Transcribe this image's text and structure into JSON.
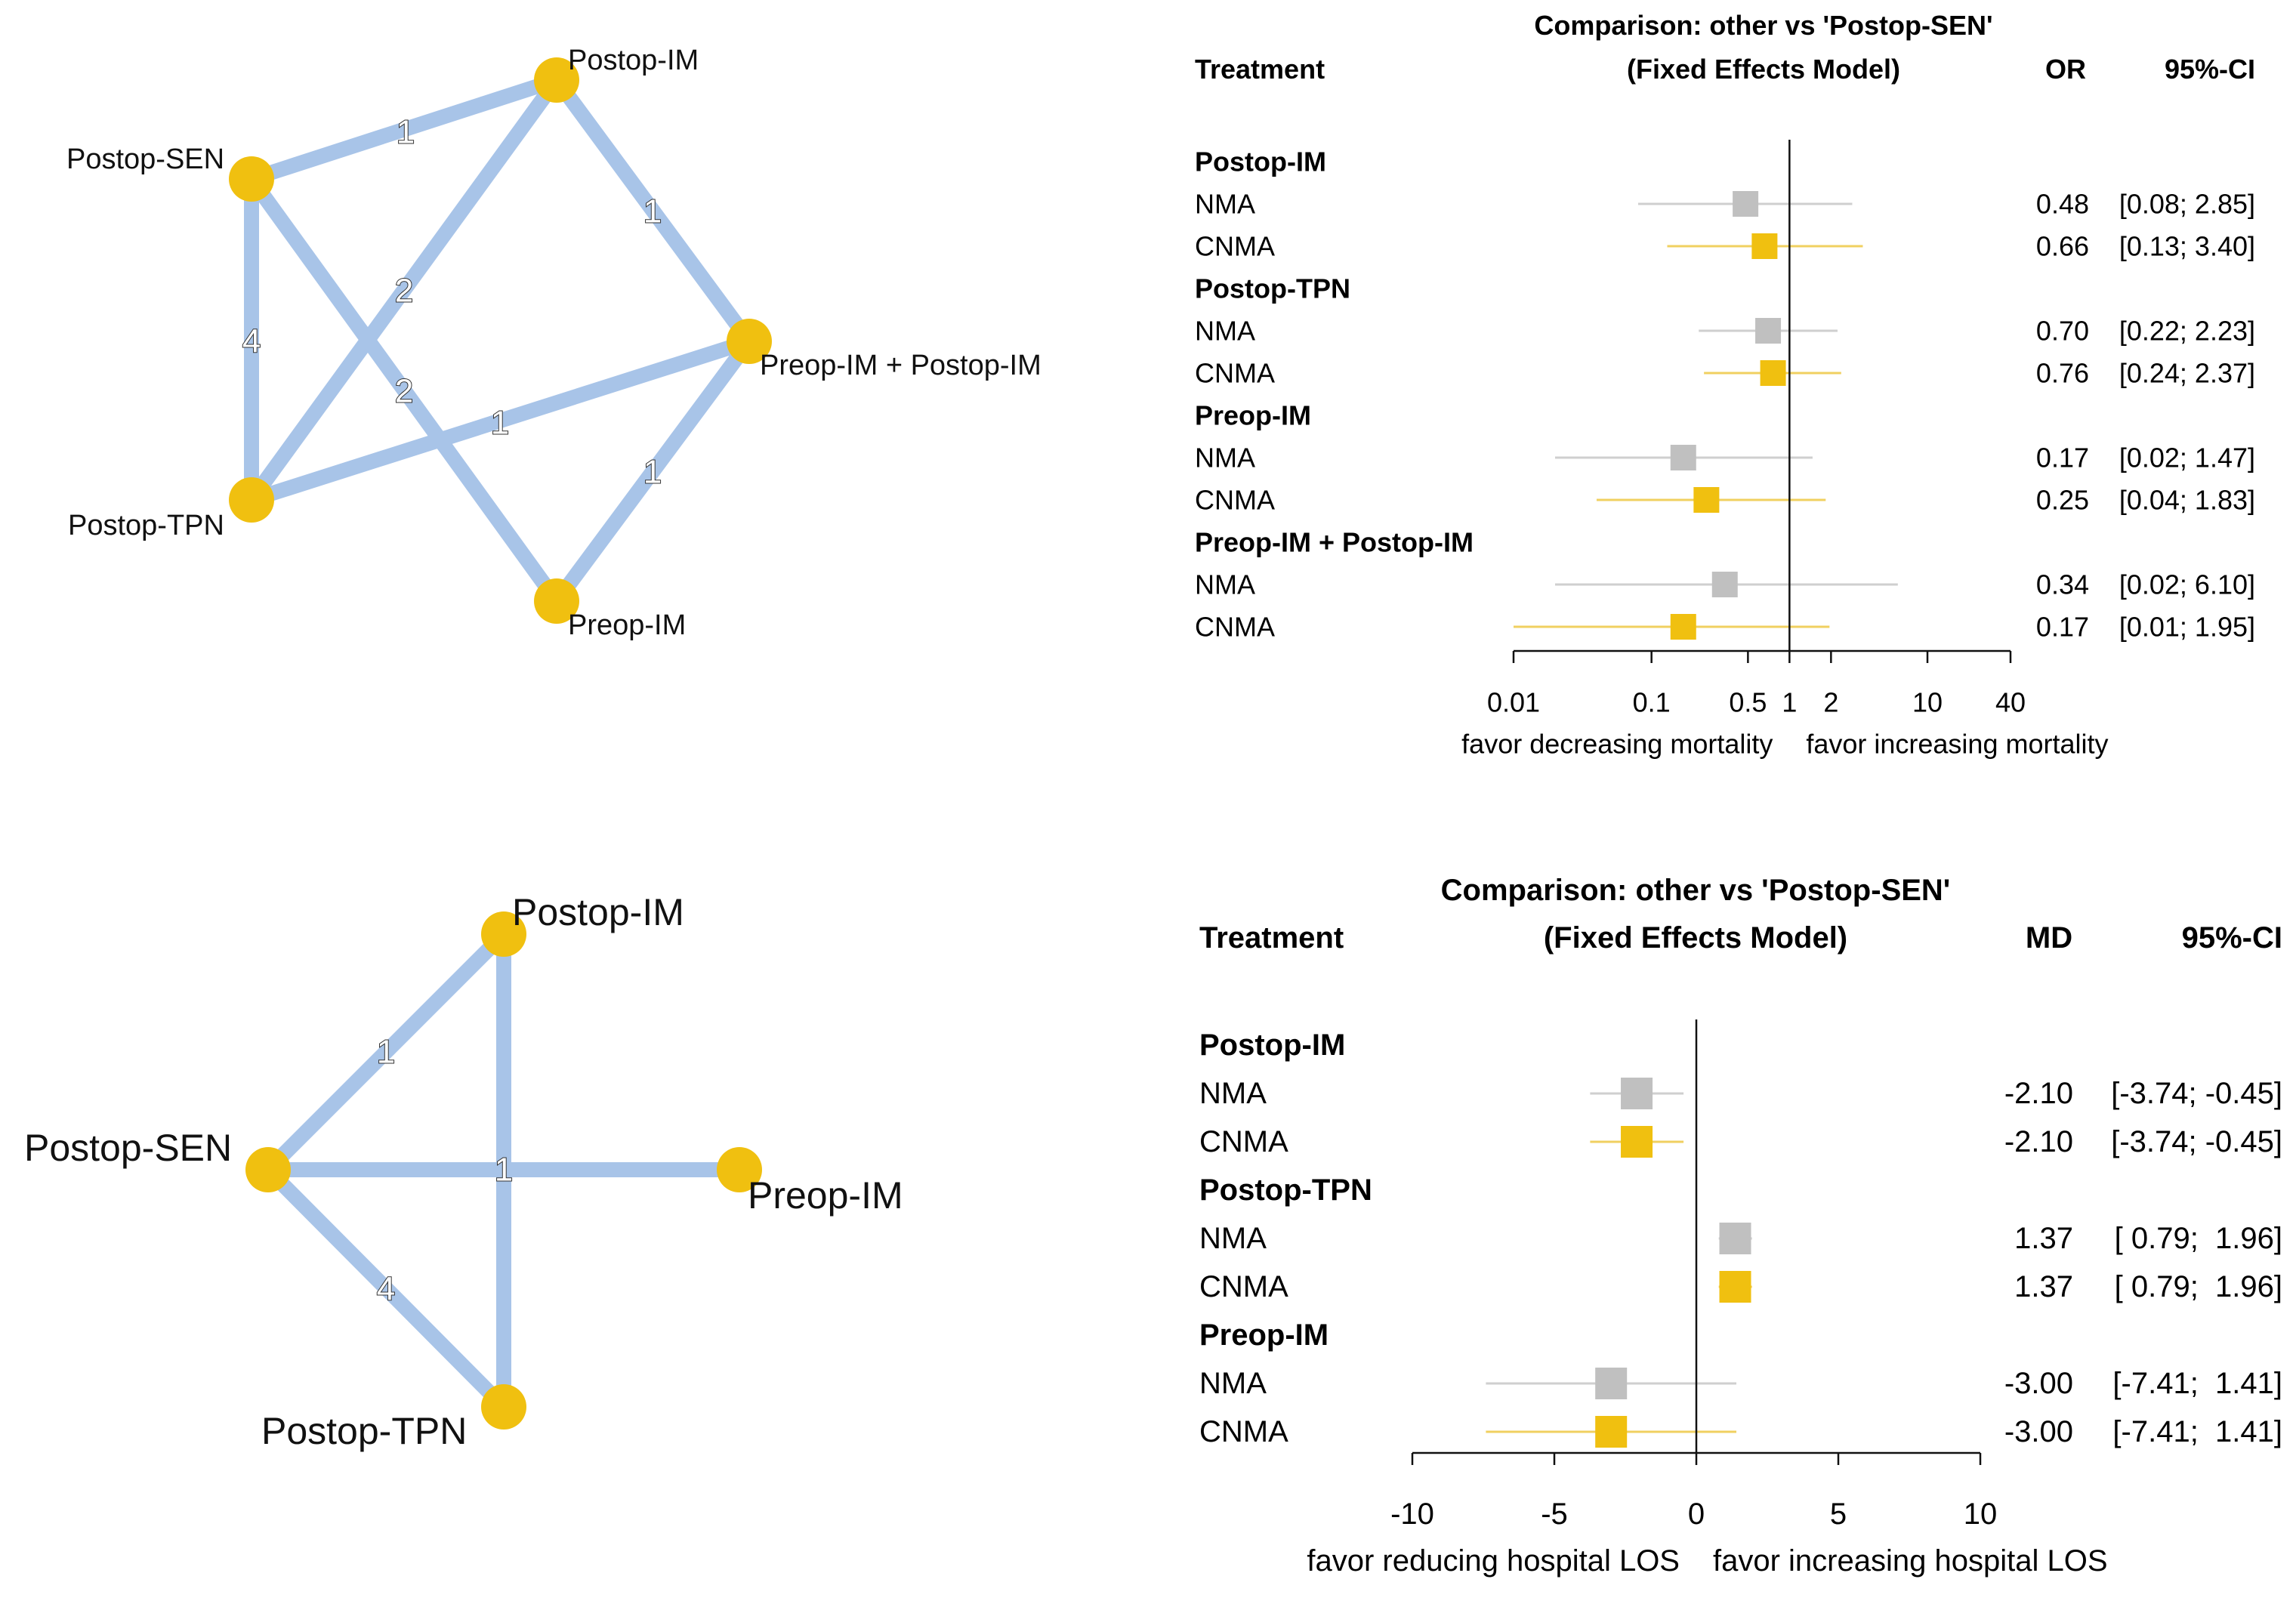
{
  "chart_data": [
    {
      "type": "network",
      "panel": "top-left",
      "nodes": [
        "Postop-IM",
        "Postop-SEN",
        "Preop-IM + Postop-IM",
        "Postop-TPN",
        "Preop-IM"
      ],
      "edges": [
        {
          "from": "Postop-SEN",
          "to": "Postop-IM",
          "label": "1"
        },
        {
          "from": "Postop-IM",
          "to": "Preop-IM + Postop-IM",
          "label": "1"
        },
        {
          "from": "Postop-SEN",
          "to": "Postop-TPN",
          "label": "4"
        },
        {
          "from": "Postop-TPN",
          "to": "Postop-IM",
          "label": "2"
        },
        {
          "from": "Postop-SEN",
          "to": "Preop-IM",
          "label": "2"
        },
        {
          "from": "Postop-TPN",
          "to": "Preop-IM + Postop-IM",
          "label": "1"
        },
        {
          "from": "Preop-IM + Postop-IM",
          "to": "Preop-IM",
          "label": "1"
        }
      ],
      "colors": {
        "node": "#f0c010",
        "edge": "#a8c4e8"
      }
    },
    {
      "type": "forest",
      "panel": "top-right",
      "title": "Comparison: other vs 'Postop-SEN'",
      "subtitle": "(Fixed Effects Model)",
      "col_treatment": "Treatment",
      "col_effect": "OR",
      "col_ci": "95%-CI",
      "scale": "log",
      "xlim": [
        0.01,
        40
      ],
      "ref_line": 1,
      "ticks": [
        0.01,
        0.1,
        0.5,
        1,
        2,
        10,
        40
      ],
      "tick_labels": [
        "0.01",
        "0.1",
        "0.5",
        "1",
        "2",
        "10",
        "40"
      ],
      "label_left": "favor decreasing mortality",
      "label_right": "favor increasing mortality",
      "groups": [
        {
          "name": "Postop-IM",
          "rows": [
            {
              "model": "NMA",
              "est": 0.48,
              "lo": 0.08,
              "hi": 2.85,
              "est_text": "0.48",
              "ci_text": "[0.08; 2.85]"
            },
            {
              "model": "CNMA",
              "est": 0.66,
              "lo": 0.13,
              "hi": 3.4,
              "est_text": "0.66",
              "ci_text": "[0.13; 3.40]"
            }
          ]
        },
        {
          "name": "Postop-TPN",
          "rows": [
            {
              "model": "NMA",
              "est": 0.7,
              "lo": 0.22,
              "hi": 2.23,
              "est_text": "0.70",
              "ci_text": "[0.22; 2.23]"
            },
            {
              "model": "CNMA",
              "est": 0.76,
              "lo": 0.24,
              "hi": 2.37,
              "est_text": "0.76",
              "ci_text": "[0.24; 2.37]"
            }
          ]
        },
        {
          "name": "Preop-IM",
          "rows": [
            {
              "model": "NMA",
              "est": 0.17,
              "lo": 0.02,
              "hi": 1.47,
              "est_text": "0.17",
              "ci_text": "[0.02; 1.47]"
            },
            {
              "model": "CNMA",
              "est": 0.25,
              "lo": 0.04,
              "hi": 1.83,
              "est_text": "0.25",
              "ci_text": "[0.04; 1.83]"
            }
          ]
        },
        {
          "name": "Preop-IM + Postop-IM",
          "rows": [
            {
              "model": "NMA",
              "est": 0.34,
              "lo": 0.02,
              "hi": 6.1,
              "est_text": "0.34",
              "ci_text": "[0.02; 6.10]"
            },
            {
              "model": "CNMA",
              "est": 0.17,
              "lo": 0.01,
              "hi": 1.95,
              "est_text": "0.17",
              "ci_text": "[0.01; 1.95]"
            }
          ]
        }
      ]
    },
    {
      "type": "network",
      "panel": "bottom-left",
      "nodes": [
        "Postop-IM",
        "Postop-SEN",
        "Preop-IM",
        "Postop-TPN"
      ],
      "edges": [
        {
          "from": "Postop-SEN",
          "to": "Postop-IM",
          "label": "1"
        },
        {
          "from": "Postop-IM",
          "to": "Postop-TPN",
          "label": ""
        },
        {
          "from": "Postop-SEN",
          "to": "Preop-IM",
          "label": "1"
        },
        {
          "from": "Postop-SEN",
          "to": "Postop-TPN",
          "label": "4"
        }
      ],
      "colors": {
        "node": "#f0c010",
        "edge": "#a8c4e8"
      }
    },
    {
      "type": "forest",
      "panel": "bottom-right",
      "title": "Comparison: other vs 'Postop-SEN'",
      "subtitle": "(Fixed Effects Model)",
      "col_treatment": "Treatment",
      "col_effect": "MD",
      "col_ci": "95%-CI",
      "scale": "linear",
      "xlim": [
        -10,
        10
      ],
      "ref_line": 0,
      "ticks": [
        -10,
        -5,
        0,
        5,
        10
      ],
      "tick_labels": [
        "-10",
        "-5",
        "0",
        "5",
        "10"
      ],
      "label_left": "favor reducing hospital LOS",
      "label_right": "favor increasing hospital LOS",
      "groups": [
        {
          "name": "Postop-IM",
          "rows": [
            {
              "model": "NMA",
              "est": -2.1,
              "lo": -3.74,
              "hi": -0.45,
              "est_text": "-2.10",
              "ci_text": "[-3.74; -0.45]"
            },
            {
              "model": "CNMA",
              "est": -2.1,
              "lo": -3.74,
              "hi": -0.45,
              "est_text": "-2.10",
              "ci_text": "[-3.74; -0.45]"
            }
          ]
        },
        {
          "name": "Postop-TPN",
          "rows": [
            {
              "model": "NMA",
              "est": 1.37,
              "lo": 0.79,
              "hi": 1.96,
              "est_text": "1.37",
              "ci_text": "[ 0.79;  1.96]"
            },
            {
              "model": "CNMA",
              "est": 1.37,
              "lo": 0.79,
              "hi": 1.96,
              "est_text": "1.37",
              "ci_text": "[ 0.79;  1.96]"
            }
          ]
        },
        {
          "name": "Preop-IM",
          "rows": [
            {
              "model": "NMA",
              "est": -3.0,
              "lo": -7.41,
              "hi": 1.41,
              "est_text": "-3.00",
              "ci_text": "[-7.41;  1.41]"
            },
            {
              "model": "CNMA",
              "est": -3.0,
              "lo": -7.41,
              "hi": 1.41,
              "est_text": "-3.00",
              "ci_text": "[-7.41;  1.41]"
            }
          ]
        }
      ]
    }
  ],
  "colors": {
    "nma": "#c0c0c0",
    "cnma": "#f0c010",
    "cnma_line": "#f0d060",
    "nma_line": "#cfcfcf"
  }
}
